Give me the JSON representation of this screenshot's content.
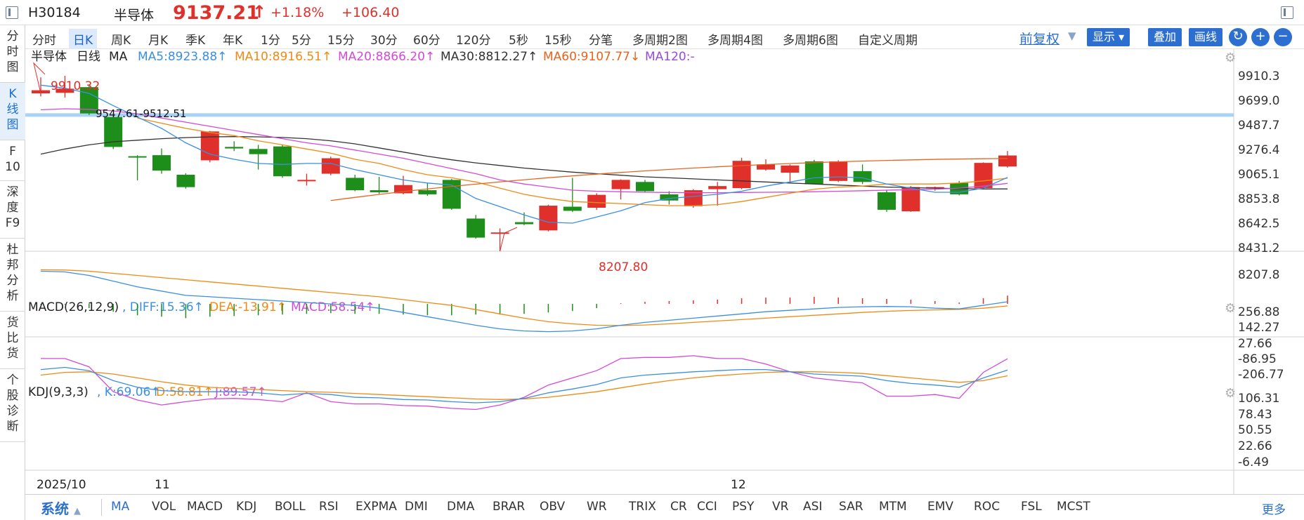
{
  "header": {
    "code": "H30184",
    "name": "半导体",
    "price": "9137.21",
    "arrow": "↑",
    "pct": "+1.18%",
    "change": "+106.40",
    "up_color": "#e0302b"
  },
  "left_nav": [
    {
      "label": "分\n时\n图"
    },
    {
      "label": "K\n线\n图"
    },
    {
      "label": "F\n10"
    },
    {
      "label": "深\n度\nF9"
    },
    {
      "label": "杜\n邦\n分\n析"
    },
    {
      "label": "货\n比\n货"
    },
    {
      "label": "个\n股\n诊\n断"
    }
  ],
  "periods": [
    "分时",
    "日K",
    "周K",
    "月K",
    "季K",
    "年K",
    "1分",
    "5分",
    "15分",
    "30分",
    "60分",
    "120分",
    "5秒",
    "15秒",
    "分笔",
    "多周期2图",
    "多周期4图",
    "多周期6图",
    "自定义周期"
  ],
  "active_period": "日K",
  "toolbar": {
    "fq": "前复权",
    "display": "显示",
    "overlay": "叠加",
    "draw": "画线"
  },
  "ma_legend": {
    "name": "半导体",
    "period": "日线",
    "ma": "MA",
    "ma5": "MA5:8923.88↑",
    "ma10": "MA10:8916.51↑",
    "ma20": "MA20:8866.20↑",
    "ma30": "MA30:8812.27↑",
    "ma60": "MA60:9107.77↓",
    "ma120": "MA120:-"
  },
  "macd_legend": {
    "name": "MACD(26,12,9)",
    "diff": ", DIFF:15.36↑",
    "dea": "DEA:-13.91↑",
    "macd": "MACD:58.54↑"
  },
  "kdj_legend": {
    "name": "KDJ(9,3,3)",
    "k": ", K:69.06↑",
    "d": "D:58.81↑",
    "j": "J:89.57↑"
  },
  "colors": {
    "ma5": "#3b8fe0",
    "ma10": "#f08a14",
    "ma20": "#d34ad8",
    "ma30": "#333333",
    "ma60": "#e8641e",
    "up": "#e0302b",
    "down": "#1e8e1a",
    "hline": "#a9d3f6"
  },
  "price_axis": [
    "9910.3",
    "9699.0",
    "9487.7",
    "9276.4",
    "9065.1",
    "8853.8",
    "8642.5",
    "8431.2",
    "8207.8"
  ],
  "macd_axis": [
    "256.88",
    "142.27",
    "27.66",
    "-86.95",
    "-206.77"
  ],
  "kdj_axis": [
    "106.31",
    "78.43",
    "50.55",
    "22.66",
    "-6.49"
  ],
  "annotations": {
    "high": "9910.32",
    "low": "8207.80",
    "range": "9547.61-9512.51"
  },
  "date_axis": [
    "2025/10",
    "11",
    "12"
  ],
  "indicators": [
    "MA",
    "VOL",
    "MACD",
    "KDJ",
    "BOLL",
    "RSI",
    "EXPMA",
    "DMI",
    "DMA",
    "BRAR",
    "OBV",
    "WR",
    "TRIX",
    "CR",
    "CCI",
    "PSY",
    "VR",
    "ASI",
    "SAR",
    "MTM",
    "EMV",
    "ROC",
    "FSL",
    "MCST"
  ],
  "active_indicator": "MA",
  "system": "系统",
  "more": "更多",
  "chart_data": {
    "type": "candlestick",
    "candles": [
      {
        "o": 9740,
        "c": 9770,
        "h": 9895,
        "l": 9710
      },
      {
        "o": 9745,
        "c": 9785,
        "h": 9910,
        "l": 9700
      },
      {
        "o": 9800,
        "c": 9545,
        "h": 9815,
        "l": 9530
      },
      {
        "o": 9510,
        "c": 9220,
        "h": 9530,
        "l": 9200
      },
      {
        "o": 9130,
        "c": 9120,
        "h": 9140,
        "l": 8895
      },
      {
        "o": 9140,
        "c": 8990,
        "h": 9205,
        "l": 8960
      },
      {
        "o": 8950,
        "c": 8830,
        "h": 8965,
        "l": 8815
      },
      {
        "o": 9090,
        "c": 9370,
        "h": 9375,
        "l": 9070
      },
      {
        "o": 9220,
        "c": 9205,
        "h": 9275,
        "l": 9180
      },
      {
        "o": 9200,
        "c": 9150,
        "h": 9240,
        "l": 9000
      },
      {
        "o": 9225,
        "c": 8935,
        "h": 9245,
        "l": 8920
      },
      {
        "o": 8895,
        "c": 8900,
        "h": 8960,
        "l": 8845
      },
      {
        "o": 8960,
        "c": 9110,
        "h": 9125,
        "l": 8945
      },
      {
        "o": 8920,
        "c": 8800,
        "h": 8950,
        "l": 8790
      },
      {
        "o": 8800,
        "c": 8780,
        "h": 8930,
        "l": 8765
      },
      {
        "o": 8770,
        "c": 8850,
        "h": 8940,
        "l": 8760
      },
      {
        "o": 8800,
        "c": 8760,
        "h": 8865,
        "l": 8745
      },
      {
        "o": 8900,
        "c": 8620,
        "h": 8910,
        "l": 8610
      },
      {
        "o": 8525,
        "c": 8340,
        "h": 8560,
        "l": 8330
      },
      {
        "o": 8380,
        "c": 8390,
        "h": 8430,
        "l": 8208
      },
      {
        "o": 8490,
        "c": 8470,
        "h": 8585,
        "l": 8460
      },
      {
        "o": 8410,
        "c": 8650,
        "h": 8660,
        "l": 8400
      },
      {
        "o": 8640,
        "c": 8600,
        "h": 8920,
        "l": 8590
      },
      {
        "o": 8630,
        "c": 8755,
        "h": 8770,
        "l": 8610
      },
      {
        "o": 8810,
        "c": 8900,
        "h": 8905,
        "l": 8710
      },
      {
        "o": 8880,
        "c": 8790,
        "h": 8900,
        "l": 8780
      },
      {
        "o": 8760,
        "c": 8700,
        "h": 8790,
        "l": 8660
      },
      {
        "o": 8645,
        "c": 8800,
        "h": 8810,
        "l": 8630
      },
      {
        "o": 8810,
        "c": 8840,
        "h": 8880,
        "l": 8650
      },
      {
        "o": 8820,
        "c": 9085,
        "h": 9115,
        "l": 8810
      },
      {
        "o": 9000,
        "c": 9050,
        "h": 9100,
        "l": 8990
      },
      {
        "o": 8970,
        "c": 9040,
        "h": 9050,
        "l": 8880
      },
      {
        "o": 9080,
        "c": 8860,
        "h": 9095,
        "l": 8860
      },
      {
        "o": 8890,
        "c": 9080,
        "h": 9090,
        "l": 8880
      },
      {
        "o": 8985,
        "c": 8880,
        "h": 9050,
        "l": 8860
      },
      {
        "o": 8780,
        "c": 8610,
        "h": 8800,
        "l": 8590
      },
      {
        "o": 8595,
        "c": 8830,
        "h": 8840,
        "l": 8590
      },
      {
        "o": 8820,
        "c": 8830,
        "h": 8835,
        "l": 8795
      },
      {
        "o": 8870,
        "c": 8760,
        "h": 8890,
        "l": 8750
      },
      {
        "o": 8820,
        "c": 9065,
        "h": 9070,
        "l": 8810
      },
      {
        "o": 9030,
        "c": 9137,
        "h": 9180,
        "l": 9020
      }
    ],
    "ma5": [
      9820,
      9790,
      9740,
      9620,
      9510,
      9400,
      9260,
      9150,
      9100,
      9060,
      9050,
      9060,
      9060,
      9000,
      8950,
      8900,
      8870,
      8850,
      8720,
      8640,
      8560,
      8490,
      8480,
      8540,
      8600,
      8680,
      8720,
      8740,
      8760,
      8790,
      8840,
      8880,
      8920,
      8930,
      8920,
      8860,
      8820,
      8780,
      8780,
      8820,
      8923.88
    ],
    "ma10": [
      null,
      null,
      null,
      null,
      9500,
      9450,
      9400,
      9360,
      9330,
      9280,
      9240,
      9200,
      9160,
      9100,
      9060,
      9000,
      8950,
      8920,
      8880,
      8820,
      8760,
      8720,
      8690,
      8680,
      8670,
      8660,
      8650,
      8650,
      8660,
      8690,
      8730,
      8770,
      8810,
      8830,
      8840,
      8860,
      8860,
      8860,
      8870,
      8890,
      8916.51
    ],
    "ma20": [
      9580,
      9590,
      9585,
      9570,
      9540,
      9500,
      9460,
      9420,
      9380,
      9340,
      9300,
      9260,
      9230,
      9190,
      9150,
      9110,
      9060,
      9010,
      8960,
      8900,
      8860,
      8830,
      8800,
      8790,
      8785,
      8780,
      8778,
      8776,
      8776,
      8778,
      8780,
      8782,
      8785,
      8790,
      8795,
      8800,
      8805,
      8810,
      8820,
      8840,
      8866.2
    ],
    "ma30": [
      9150,
      9200,
      9240,
      9270,
      9285,
      9300,
      9310,
      9318,
      9320,
      9318,
      9312,
      9300,
      9280,
      9250,
      9210,
      9170,
      9130,
      9095,
      9065,
      9040,
      9015,
      8995,
      8975,
      8960,
      8945,
      8930,
      8920,
      8910,
      8900,
      8890,
      8880,
      8870,
      8860,
      8850,
      8840,
      8830,
      8825,
      8820,
      8815,
      8812,
      8812.27
    ],
    "ma60": [
      null,
      null,
      null,
      null,
      null,
      null,
      null,
      null,
      null,
      null,
      null,
      null,
      null,
      null,
      null,
      null,
      null,
      null,
      null,
      null,
      null,
      null,
      null,
      null,
      null,
      null,
      null,
      null,
      null,
      null,
      null,
      null,
      null,
      null,
      null,
      null,
      null,
      null,
      null,
      null,
      9107.77
    ],
    "macd": {
      "diff": [
        230,
        225,
        200,
        160,
        120,
        90,
        60,
        50,
        40,
        30,
        20,
        10,
        0,
        -10,
        -30,
        -60,
        -90,
        -120,
        -150,
        -175,
        -190,
        -195,
        -190,
        -175,
        -150,
        -130,
        -115,
        -100,
        -85,
        -70,
        -55,
        -45,
        -35,
        -25,
        -20,
        -18,
        -20,
        -30,
        -35,
        -10,
        15.36
      ],
      "dea": [
        240,
        238,
        230,
        215,
        200,
        185,
        170,
        155,
        140,
        125,
        110,
        95,
        80,
        65,
        50,
        30,
        10,
        -10,
        -40,
        -70,
        -100,
        -125,
        -140,
        -150,
        -152,
        -148,
        -140,
        -130,
        -120,
        -110,
        -100,
        -90,
        -80,
        -70,
        -60,
        -52,
        -46,
        -42,
        -38,
        -30,
        -13.91
      ],
      "hist": [
        -5,
        -5,
        -30,
        -55,
        -80,
        -90,
        -100,
        -90,
        -85,
        -80,
        -75,
        -70,
        -65,
        -70,
        -70,
        -75,
        -80,
        -80,
        -75,
        -75,
        -70,
        -60,
        -50,
        -30,
        5,
        15,
        20,
        25,
        30,
        40,
        45,
        45,
        50,
        45,
        40,
        35,
        30,
        20,
        10,
        40,
        58.54
      ]
    },
    "kdj": {
      "k": [
        70,
        74,
        68,
        50,
        38,
        32,
        30,
        30,
        30,
        28,
        24,
        27,
        25,
        20,
        19,
        16,
        15,
        12,
        10,
        12,
        18,
        28,
        35,
        43,
        55,
        60,
        63,
        66,
        68,
        70,
        70,
        66,
        62,
        60,
        58,
        50,
        45,
        42,
        38,
        55,
        69.06
      ],
      "d": [
        60,
        65,
        66,
        62,
        55,
        48,
        42,
        38,
        36,
        34,
        32,
        30,
        29,
        27,
        25,
        23,
        21,
        19,
        17,
        16,
        17,
        20,
        25,
        30,
        37,
        44,
        50,
        55,
        59,
        62,
        65,
        66,
        66,
        65,
        63,
        59,
        55,
        51,
        47,
        50,
        58.81
      ],
      "j": [
        90,
        90,
        75,
        30,
        15,
        6,
        12,
        17,
        18,
        16,
        12,
        28,
        12,
        8,
        8,
        5,
        4,
        0,
        -2,
        6,
        20,
        42,
        55,
        68,
        90,
        92,
        92,
        95,
        90,
        90,
        80,
        66,
        55,
        50,
        46,
        22,
        22,
        25,
        18,
        65,
        89.57
      ]
    }
  }
}
